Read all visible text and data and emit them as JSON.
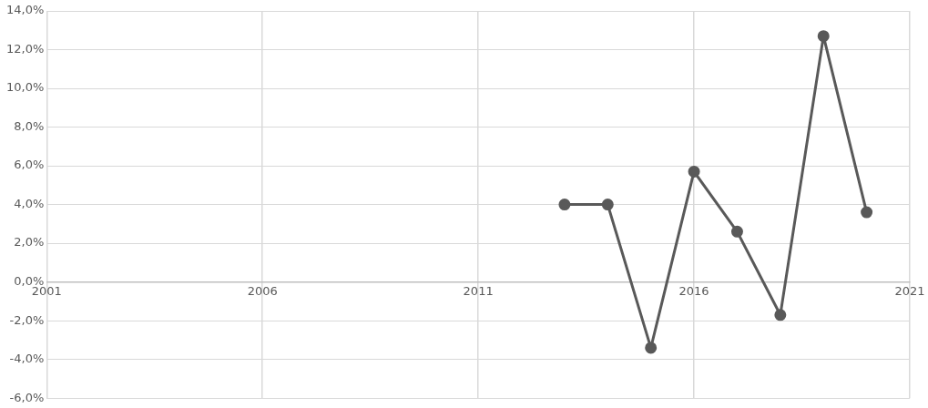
{
  "chart_data": {
    "type": "line",
    "x": [
      2013,
      2014,
      2015,
      2016,
      2017,
      2018,
      2019,
      2020
    ],
    "series": [
      {
        "color": "#595959",
        "values": [
          4.0,
          4.0,
          -3.4,
          5.7,
          2.6,
          -1.7,
          12.7,
          3.6
        ]
      }
    ],
    "xlim": [
      2001,
      2021
    ],
    "xticks": [
      2001,
      2006,
      2011,
      2016,
      2021
    ],
    "ylim": [
      -6,
      14
    ],
    "yticks": [
      {
        "value": -6,
        "label": "-6,0%"
      },
      {
        "value": -4,
        "label": "-4,0%"
      },
      {
        "value": -2,
        "label": "-2,0%"
      },
      {
        "value": 0,
        "label": "0,0%"
      },
      {
        "value": 2,
        "label": "2,0%"
      },
      {
        "value": 4,
        "label": "4,0%"
      },
      {
        "value": 6,
        "label": "6,0%"
      },
      {
        "value": 8,
        "label": "8,0%"
      },
      {
        "value": 10,
        "label": "10,0%"
      },
      {
        "value": 12,
        "label": "12,0%"
      },
      {
        "value": 14,
        "label": "14,0%"
      }
    ],
    "grid": true,
    "legend": false,
    "marker": "circle",
    "line_style": "solid"
  }
}
